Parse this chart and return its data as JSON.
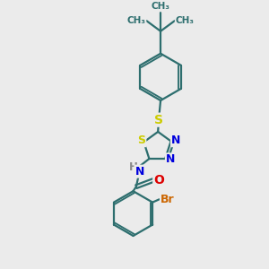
{
  "background_color": "#ebebeb",
  "bond_color": "#2d6e6e",
  "bond_width": 1.6,
  "atom_colors": {
    "S": "#cccc00",
    "N": "#0000dd",
    "O": "#dd0000",
    "Br": "#cc6600",
    "H": "#888888",
    "C": "#2d6e6e"
  },
  "figsize": [
    3.0,
    3.0
  ],
  "dpi": 100,
  "xlim": [
    -1.5,
    2.8
  ],
  "ylim": [
    -3.2,
    3.8
  ]
}
